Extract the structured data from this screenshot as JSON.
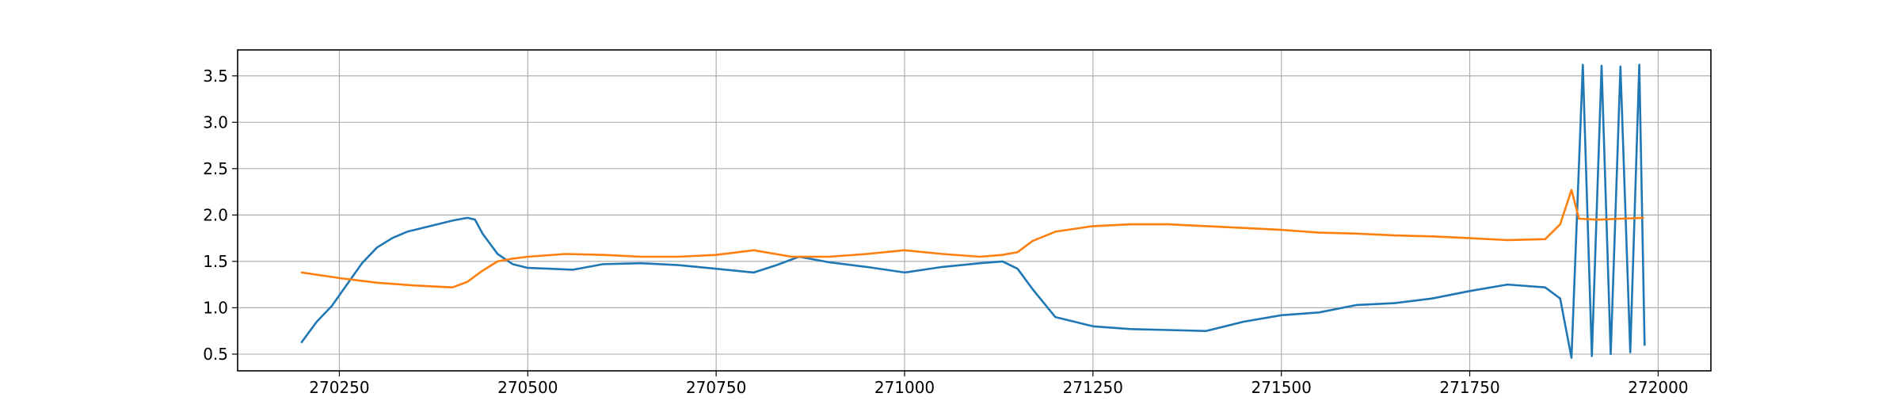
{
  "chart_data": {
    "type": "line",
    "title": "",
    "xlabel": "",
    "ylabel": "",
    "xlim": [
      270115,
      272070
    ],
    "ylim": [
      0.32,
      3.78
    ],
    "grid": true,
    "xticks": [
      270250,
      270500,
      270750,
      271000,
      271250,
      271500,
      271750,
      272000
    ],
    "xtick_labels": [
      "270250",
      "270500",
      "270750",
      "271000",
      "271250",
      "271500",
      "271750",
      "272000"
    ],
    "yticks": [
      0.5,
      1.0,
      1.5,
      2.0,
      2.5,
      3.0,
      3.5
    ],
    "ytick_labels": [
      "0.5",
      "1.0",
      "1.5",
      "2.0",
      "2.5",
      "3.0",
      "3.5"
    ],
    "series": [
      {
        "color": "#1f77b4",
        "x": [
          270200,
          270220,
          270240,
          270260,
          270280,
          270300,
          270320,
          270340,
          270360,
          270380,
          270400,
          270420,
          270430,
          270440,
          270460,
          270480,
          270500,
          270530,
          270560,
          270600,
          270650,
          270700,
          270750,
          270800,
          270830,
          270860,
          270900,
          270950,
          271000,
          271050,
          271100,
          271130,
          271150,
          271170,
          271200,
          271250,
          271300,
          271350,
          271400,
          271450,
          271500,
          271550,
          271600,
          271650,
          271700,
          271750,
          271800,
          271850,
          271870,
          271885,
          271900,
          271912,
          271925,
          271937,
          271950,
          271963,
          271975,
          271982
        ],
        "y": [
          0.63,
          0.85,
          1.02,
          1.25,
          1.48,
          1.65,
          1.75,
          1.82,
          1.86,
          1.9,
          1.94,
          1.97,
          1.95,
          1.8,
          1.58,
          1.47,
          1.43,
          1.42,
          1.41,
          1.47,
          1.48,
          1.46,
          1.42,
          1.38,
          1.46,
          1.55,
          1.49,
          1.44,
          1.38,
          1.44,
          1.48,
          1.5,
          1.42,
          1.2,
          0.9,
          0.8,
          0.77,
          0.76,
          0.75,
          0.85,
          0.92,
          0.95,
          1.03,
          1.05,
          1.1,
          1.18,
          1.25,
          1.22,
          1.1,
          0.46,
          3.62,
          0.48,
          3.61,
          0.5,
          3.6,
          0.52,
          3.62,
          0.6
        ]
      },
      {
        "color": "#ff7f0e",
        "x": [
          270200,
          270250,
          270300,
          270350,
          270400,
          270420,
          270440,
          270460,
          270480,
          270500,
          270550,
          270600,
          270650,
          270700,
          270750,
          270800,
          270850,
          270900,
          270950,
          271000,
          271050,
          271100,
          271130,
          271150,
          271170,
          271200,
          271250,
          271300,
          271350,
          271400,
          271450,
          271500,
          271550,
          271600,
          271650,
          271700,
          271750,
          271800,
          271850,
          271870,
          271885,
          271895,
          271920,
          271950,
          271980
        ],
        "y": [
          1.38,
          1.32,
          1.27,
          1.24,
          1.22,
          1.28,
          1.4,
          1.5,
          1.53,
          1.55,
          1.58,
          1.57,
          1.55,
          1.55,
          1.57,
          1.62,
          1.55,
          1.55,
          1.58,
          1.62,
          1.58,
          1.55,
          1.57,
          1.6,
          1.72,
          1.82,
          1.88,
          1.9,
          1.9,
          1.88,
          1.86,
          1.84,
          1.81,
          1.8,
          1.78,
          1.77,
          1.75,
          1.73,
          1.74,
          1.9,
          2.27,
          1.96,
          1.95,
          1.96,
          1.97
        ]
      }
    ]
  }
}
